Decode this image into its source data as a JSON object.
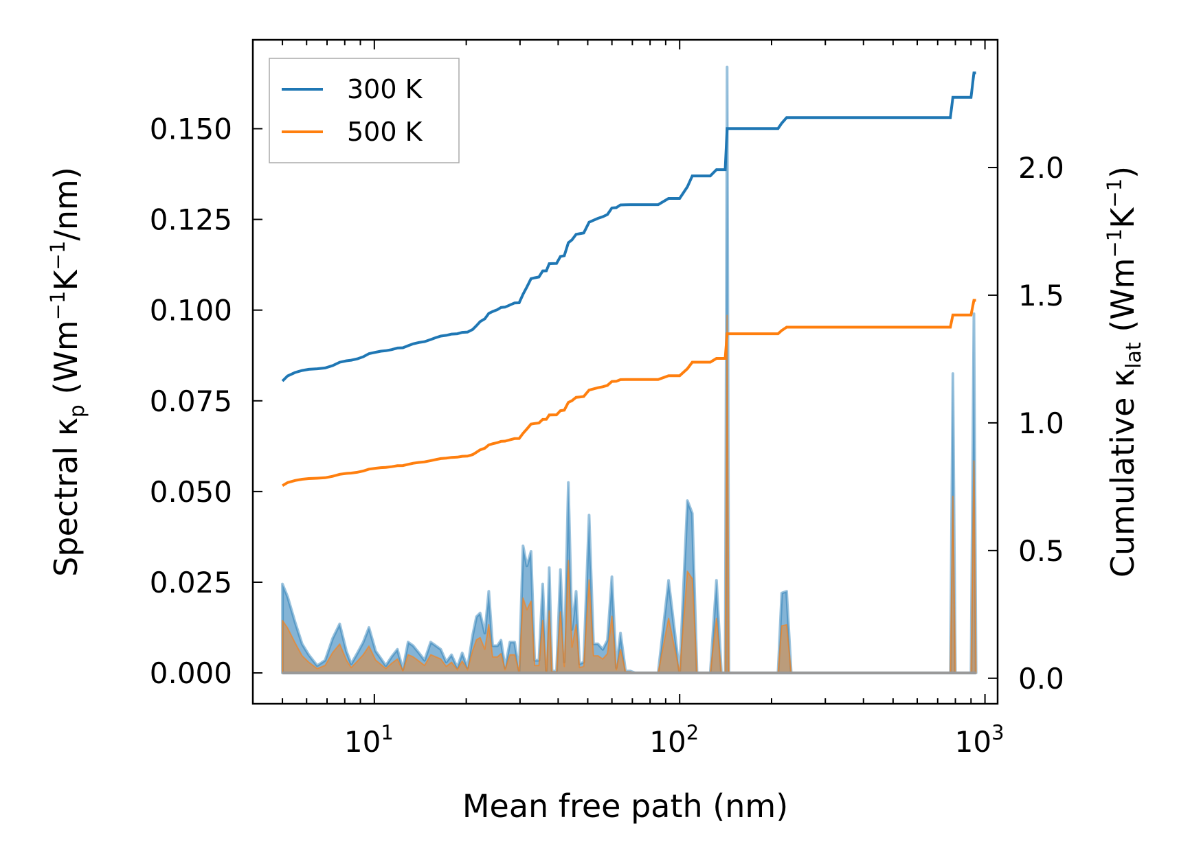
{
  "chart_data": {
    "type": "line",
    "title": "",
    "xlabel": "Mean free path (nm)",
    "ylabel_left": {
      "main": "Spectral κ",
      "sub": "p",
      "unit_open": " (Wm",
      "exp1": "−1",
      "unit_mid": "K",
      "exp2": "−1",
      "unit_close": "/nm)"
    },
    "ylabel_right": {
      "main": "Cumulative κ",
      "sub": "lat",
      "unit_open": " (Wm",
      "exp1": "−1",
      "unit_mid": "K",
      "exp2": "−1",
      "unit_close": ")"
    },
    "xscale": "log",
    "xlim": [
      4.0,
      1100
    ],
    "ylim_left": [
      -0.0085,
      0.1745
    ],
    "ylim_right": [
      -0.1,
      2.5
    ],
    "x_ticks": [
      {
        "value": 10,
        "base": "10",
        "exp": "1"
      },
      {
        "value": 100,
        "base": "10",
        "exp": "2"
      },
      {
        "value": 1000,
        "base": "10",
        "exp": "3"
      }
    ],
    "y_ticks_left": [
      {
        "value": 0.0,
        "label": "0.000"
      },
      {
        "value": 0.025,
        "label": "0.025"
      },
      {
        "value": 0.05,
        "label": "0.050"
      },
      {
        "value": 0.075,
        "label": "0.075"
      },
      {
        "value": 0.1,
        "label": "0.100"
      },
      {
        "value": 0.125,
        "label": "0.125"
      },
      {
        "value": 0.15,
        "label": "0.150"
      }
    ],
    "y_ticks_right": [
      {
        "value": 0.0,
        "label": "0.0"
      },
      {
        "value": 0.5,
        "label": "0.5"
      },
      {
        "value": 1.0,
        "label": "1.0"
      },
      {
        "value": 1.5,
        "label": "1.5"
      },
      {
        "value": 2.0,
        "label": "2.0"
      }
    ],
    "legend": {
      "position": "top-left",
      "entries": [
        {
          "name": "300 K",
          "color": "#1f77b4"
        },
        {
          "name": "500 K",
          "color": "#ff7f0e"
        }
      ]
    },
    "series_spectral": [
      {
        "name": "300 K spectral",
        "color": "#1f77b4",
        "points": [
          [
            5.0,
            0.0245
          ],
          [
            5.2,
            0.021
          ],
          [
            5.5,
            0.014
          ],
          [
            5.8,
            0.008
          ],
          [
            6.1,
            0.005
          ],
          [
            6.5,
            0.002
          ],
          [
            6.9,
            0.0035
          ],
          [
            7.3,
            0.0095
          ],
          [
            7.7,
            0.0135
          ],
          [
            8.1,
            0.006
          ],
          [
            8.4,
            0.0025
          ],
          [
            8.8,
            0.0055
          ],
          [
            9.2,
            0.0085
          ],
          [
            9.6,
            0.0125
          ],
          [
            10.1,
            0.006
          ],
          [
            10.5,
            0.004
          ],
          [
            10.9,
            0.002
          ],
          [
            11.4,
            0.0045
          ],
          [
            11.9,
            0.0065
          ],
          [
            12.4,
            0.001
          ],
          [
            12.9,
            0.0085
          ],
          [
            13.4,
            0.0075
          ],
          [
            14.0,
            0.0055
          ],
          [
            14.6,
            0.0035
          ],
          [
            15.3,
            0.0085
          ],
          [
            15.9,
            0.0075
          ],
          [
            16.5,
            0.0065
          ],
          [
            17.2,
            0.003
          ],
          [
            17.9,
            0.005
          ],
          [
            18.7,
            0.0015
          ],
          [
            19.4,
            0.0055
          ],
          [
            20.2,
            0.0015
          ],
          [
            21.0,
            0.0105
          ],
          [
            21.6,
            0.0155
          ],
          [
            22.2,
            0.0165
          ],
          [
            23.0,
            0.011
          ],
          [
            23.7,
            0.0225
          ],
          [
            24.4,
            0.0075
          ],
          [
            25.3,
            0.0075
          ],
          [
            26.0,
            0.009
          ],
          [
            26.8,
            0.0015
          ],
          [
            27.8,
            0.0085
          ],
          [
            28.8,
            0.0085
          ],
          [
            29.8,
            0.0005
          ],
          [
            30.7,
            0.035
          ],
          [
            31.6,
            0.0295
          ],
          [
            32.6,
            0.0335
          ],
          [
            33.5,
            0.0035
          ],
          [
            34.6,
            0.0035
          ],
          [
            35.6,
            0.0245
          ],
          [
            36.6,
            0.0005
          ],
          [
            37.4,
            0.029
          ],
          [
            38.2,
            0.0005
          ],
          [
            39.5,
            0.0005
          ],
          [
            40.7,
            0.0285
          ],
          [
            41.9,
            0.003
          ],
          [
            43.2,
            0.0525
          ],
          [
            44.4,
            0.012
          ],
          [
            45.8,
            0.0225
          ],
          [
            47.0,
            0.0025
          ],
          [
            48.5,
            0.003
          ],
          [
            50.5,
            0.0435
          ],
          [
            52.2,
            0.008
          ],
          [
            54.0,
            0.008
          ],
          [
            56.0,
            0.0065
          ],
          [
            58.0,
            0.009
          ],
          [
            60.0,
            0.0265
          ],
          [
            62.0,
            0.0015
          ],
          [
            64.0,
            0.011
          ],
          [
            66.5,
            0.0005
          ],
          [
            69.0,
            0.0005
          ],
          [
            71.5,
            0.0
          ],
          [
            74.0,
            0.0
          ],
          [
            76.5,
            0.0
          ],
          [
            79.0,
            0.0
          ]
        ]
      }
    ],
    "series_cumulative": []
  }
}
